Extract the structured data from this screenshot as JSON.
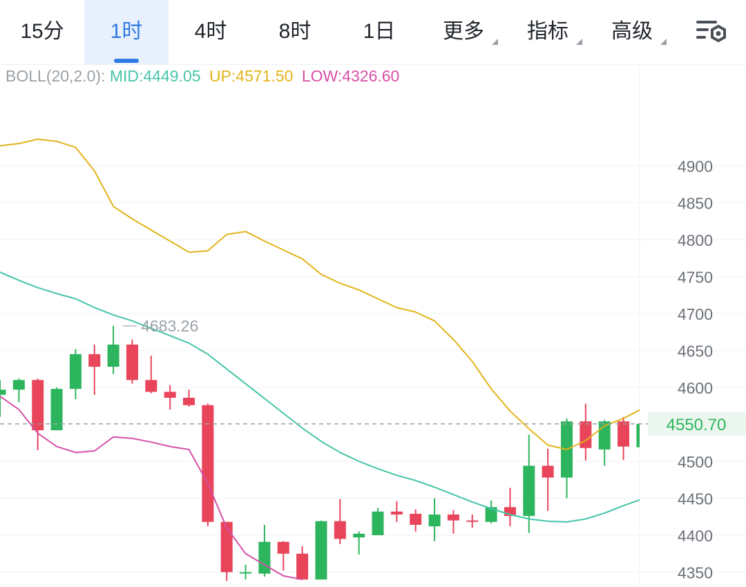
{
  "tabs": [
    {
      "label": "15分",
      "active": false,
      "dropdown": false
    },
    {
      "label": "1时",
      "active": true,
      "dropdown": false
    },
    {
      "label": "4时",
      "active": false,
      "dropdown": false
    },
    {
      "label": "8时",
      "active": false,
      "dropdown": false
    },
    {
      "label": "1日",
      "active": false,
      "dropdown": false
    },
    {
      "label": "更多",
      "active": false,
      "dropdown": true
    },
    {
      "label": "指标",
      "active": false,
      "dropdown": true
    },
    {
      "label": "高级",
      "active": false,
      "dropdown": true
    }
  ],
  "settings_icon": "chart-settings-icon",
  "indicator": {
    "name": "BOLL(20,2.0):",
    "mid": "MID:4449.05",
    "up": "UP:4571.50",
    "low": "LOW:4326.60"
  },
  "colors": {
    "up_candle": "#2db55d",
    "down_candle": "#e8445a",
    "mid_line": "#45c4a8",
    "up_line": "#e2b419",
    "low_line": "#d64fa6",
    "active_tab": "#2f7ae5",
    "price_label": "#2db55d"
  },
  "current_price": "4550.70",
  "max_marker": "4683.26",
  "chart_data": {
    "type": "candlestick",
    "y_ticks": [
      "4900",
      "4850",
      "4800",
      "4750",
      "4700",
      "4650",
      "4600",
      "4500",
      "4450",
      "4400",
      "4350"
    ],
    "ylim": [
      4340,
      4950
    ],
    "grid": true,
    "candles": [
      {
        "o": 4590,
        "h": 4610,
        "l": 4560,
        "c": 4597
      },
      {
        "o": 4597,
        "h": 4612,
        "l": 4580,
        "c": 4610
      },
      {
        "o": 4610,
        "h": 4612,
        "l": 4515,
        "c": 4542
      },
      {
        "o": 4542,
        "h": 4600,
        "l": 4542,
        "c": 4598
      },
      {
        "o": 4598,
        "h": 4652,
        "l": 4584,
        "c": 4645
      },
      {
        "o": 4645,
        "h": 4658,
        "l": 4590,
        "c": 4628
      },
      {
        "o": 4628,
        "h": 4683.26,
        "l": 4618,
        "c": 4658
      },
      {
        "o": 4658,
        "h": 4665,
        "l": 4605,
        "c": 4610
      },
      {
        "o": 4610,
        "h": 4643,
        "l": 4592,
        "c": 4594
      },
      {
        "o": 4594,
        "h": 4603,
        "l": 4570,
        "c": 4586
      },
      {
        "o": 4586,
        "h": 4597,
        "l": 4574,
        "c": 4576
      },
      {
        "o": 4576,
        "h": 4578,
        "l": 4412,
        "c": 4418
      },
      {
        "o": 4418,
        "h": 4418,
        "l": 4338,
        "c": 4350
      },
      {
        "o": 4350,
        "h": 4360,
        "l": 4340,
        "c": 4350
      },
      {
        "o": 4348,
        "h": 4414,
        "l": 4344,
        "c": 4391
      },
      {
        "o": 4391,
        "h": 4392,
        "l": 4352,
        "c": 4375
      },
      {
        "o": 4375,
        "h": 4385,
        "l": 4340,
        "c": 4340
      },
      {
        "o": 4340,
        "h": 4420,
        "l": 4340,
        "c": 4419
      },
      {
        "o": 4419,
        "h": 4449,
        "l": 4388,
        "c": 4395
      },
      {
        "o": 4397,
        "h": 4405,
        "l": 4374,
        "c": 4402
      },
      {
        "o": 4400,
        "h": 4437,
        "l": 4400,
        "c": 4432
      },
      {
        "o": 4432,
        "h": 4446,
        "l": 4418,
        "c": 4428
      },
      {
        "o": 4429,
        "h": 4435,
        "l": 4405,
        "c": 4414
      },
      {
        "o": 4412,
        "h": 4450,
        "l": 4392,
        "c": 4428
      },
      {
        "o": 4428,
        "h": 4434,
        "l": 4402,
        "c": 4420
      },
      {
        "o": 4420,
        "h": 4428,
        "l": 4410,
        "c": 4419
      },
      {
        "o": 4418,
        "h": 4447,
        "l": 4416,
        "c": 4438
      },
      {
        "o": 4438,
        "h": 4464,
        "l": 4412,
        "c": 4426
      },
      {
        "o": 4426,
        "h": 4536,
        "l": 4403,
        "c": 4494
      },
      {
        "o": 4494,
        "h": 4517,
        "l": 4433,
        "c": 4478
      },
      {
        "o": 4478,
        "h": 4558,
        "l": 4450,
        "c": 4554
      },
      {
        "o": 4554,
        "h": 4578,
        "l": 4501,
        "c": 4518
      },
      {
        "o": 4516,
        "h": 4556,
        "l": 4494,
        "c": 4554
      },
      {
        "o": 4554,
        "h": 4560,
        "l": 4502,
        "c": 4520
      },
      {
        "o": 4519,
        "h": 4556,
        "l": 4519,
        "c": 4550.7
      }
    ],
    "mid": [
      4756,
      4745,
      4735,
      4727,
      4720,
      4708,
      4698,
      4690,
      4680,
      4670,
      4660,
      4645,
      4625,
      4605,
      4585,
      4565,
      4545,
      4527,
      4512,
      4500,
      4490,
      4481,
      4474,
      4465,
      4455,
      4445,
      4436,
      4428,
      4422,
      4419,
      4418,
      4422,
      4430,
      4440,
      4449.05
    ],
    "up": [
      4927,
      4930,
      4936,
      4933,
      4925,
      4893,
      4845,
      4828,
      4813,
      4798,
      4783,
      4785,
      4807,
      4811,
      4798,
      4786,
      4774,
      4753,
      4741,
      4732,
      4720,
      4708,
      4702,
      4690,
      4665,
      4635,
      4598,
      4568,
      4544,
      4522,
      4516,
      4528,
      4548,
      4558,
      4571.5
    ],
    "low": [
      4588,
      4570,
      4538,
      4520,
      4512,
      4514,
      4533,
      4531,
      4526,
      4520,
      4516,
      4470,
      4410,
      4375,
      4360,
      4345,
      4340
    ]
  }
}
